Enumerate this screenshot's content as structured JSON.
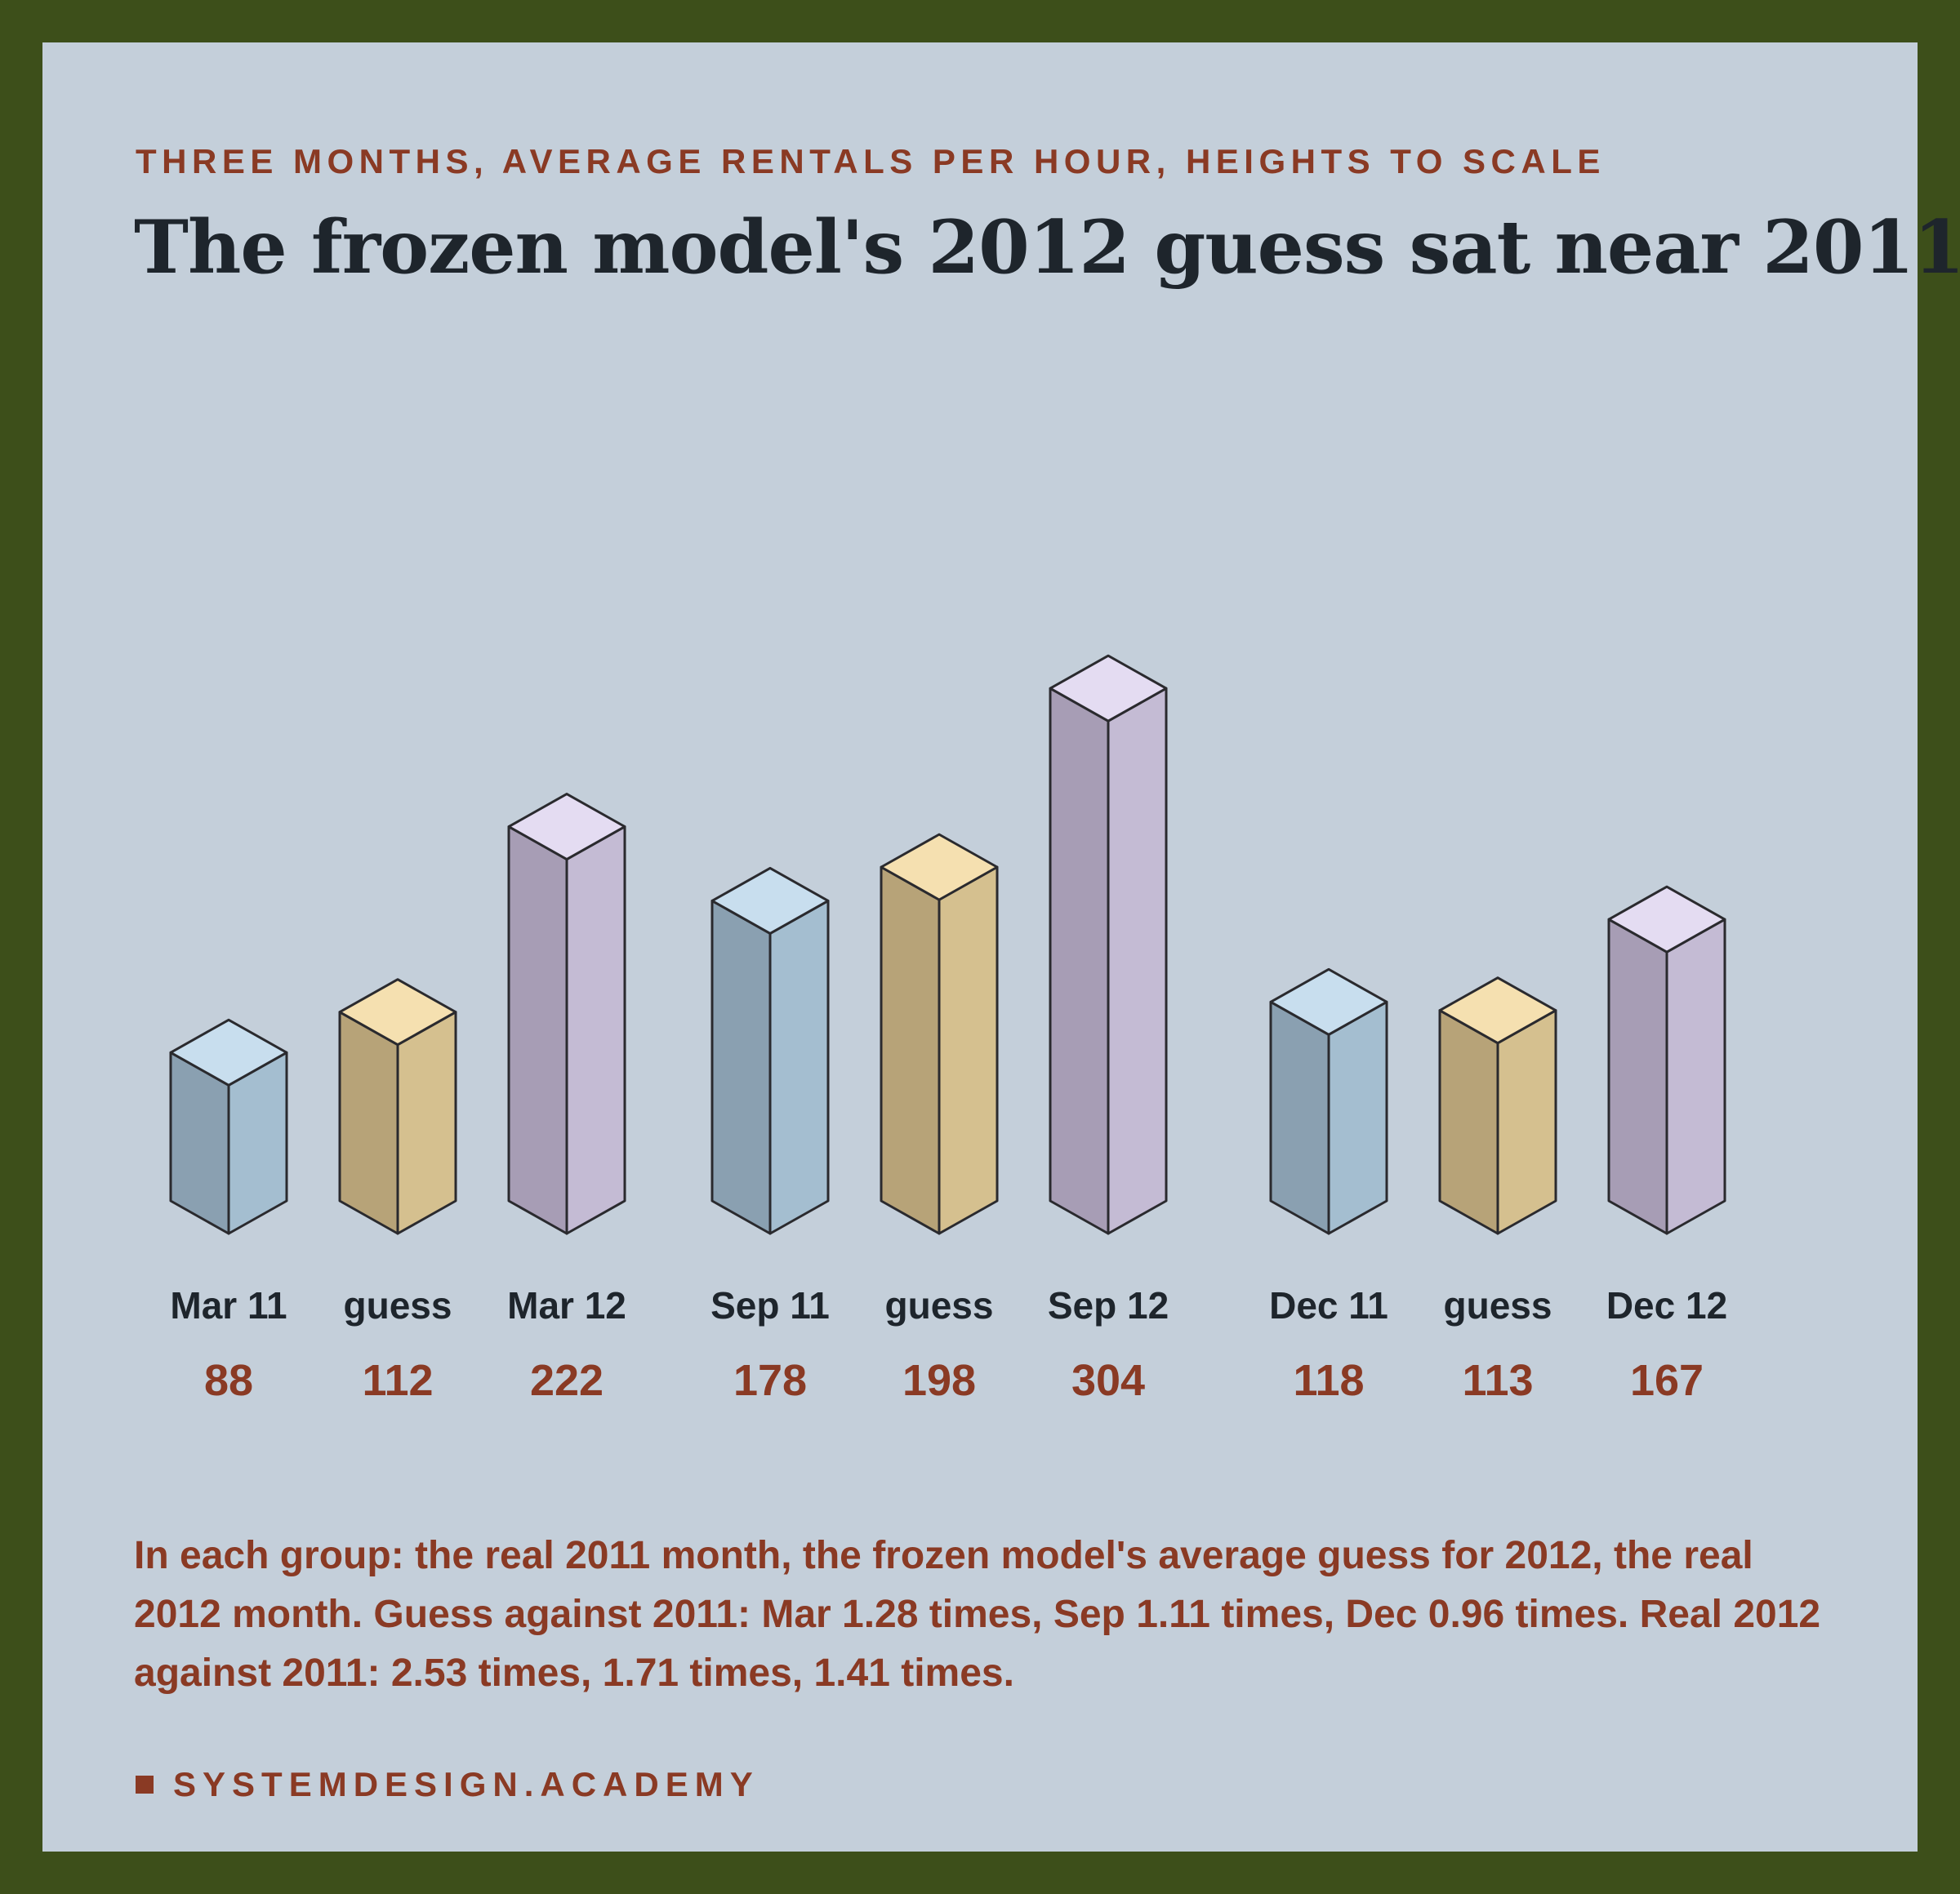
{
  "header": {
    "kicker": "THREE MONTHS, AVERAGE RENTALS PER HOUR, HEIGHTS TO SCALE",
    "title": "The frozen model's 2012 guess sat near 2011"
  },
  "chart_data": {
    "type": "bar",
    "style": "3d-isometric-columns",
    "grid": false,
    "categories": [
      "Mar 11",
      "guess",
      "Mar 12",
      "Sep 11",
      "guess",
      "Sep 12",
      "Dec 11",
      "guess",
      "Dec 12"
    ],
    "values": [
      88,
      112,
      222,
      178,
      198,
      304,
      118,
      113,
      167
    ],
    "groups": [
      {
        "bars": [
          {
            "label": "Mar 11",
            "value": 88,
            "kind": "real2011"
          },
          {
            "label": "guess",
            "value": 112,
            "kind": "guess"
          },
          {
            "label": "Mar 12",
            "value": 222,
            "kind": "real2012"
          }
        ]
      },
      {
        "bars": [
          {
            "label": "Sep 11",
            "value": 178,
            "kind": "real2011"
          },
          {
            "label": "guess",
            "value": 198,
            "kind": "guess"
          },
          {
            "label": "Sep 12",
            "value": 304,
            "kind": "real2012"
          }
        ]
      },
      {
        "bars": [
          {
            "label": "Dec 11",
            "value": 118,
            "kind": "real2011"
          },
          {
            "label": "guess",
            "value": 113,
            "kind": "guess"
          },
          {
            "label": "Dec 12",
            "value": 167,
            "kind": "real2012"
          }
        ]
      }
    ],
    "colors": {
      "real2011": {
        "top": "#c8deee",
        "left": "#8aa0b1",
        "right": "#a4bed0"
      },
      "guess": {
        "top": "#f5e0b0",
        "left": "#b7a378",
        "right": "#d5c08f"
      },
      "real2012": {
        "top": "#e4dcf2",
        "left": "#a79db5",
        "right": "#c4bbd4"
      },
      "outline": "#2a2a2e"
    }
  },
  "note": "In each group: the real 2011 month, the frozen model's average guess for 2012, the real 2012 month. Guess against 2011: Mar 1.28 times, Sep 1.11 times, Dec 0.96 times. Real 2012 against 2011: 2.53 times, 1.71 times, 1.41 times.",
  "footer": {
    "brand": "SYSTEMDESIGN.ACADEMY"
  },
  "colors": {
    "frame": "#3d4f1a",
    "card": "#c4cfda",
    "accent": "#8a3a24",
    "ink": "#1e252c"
  }
}
